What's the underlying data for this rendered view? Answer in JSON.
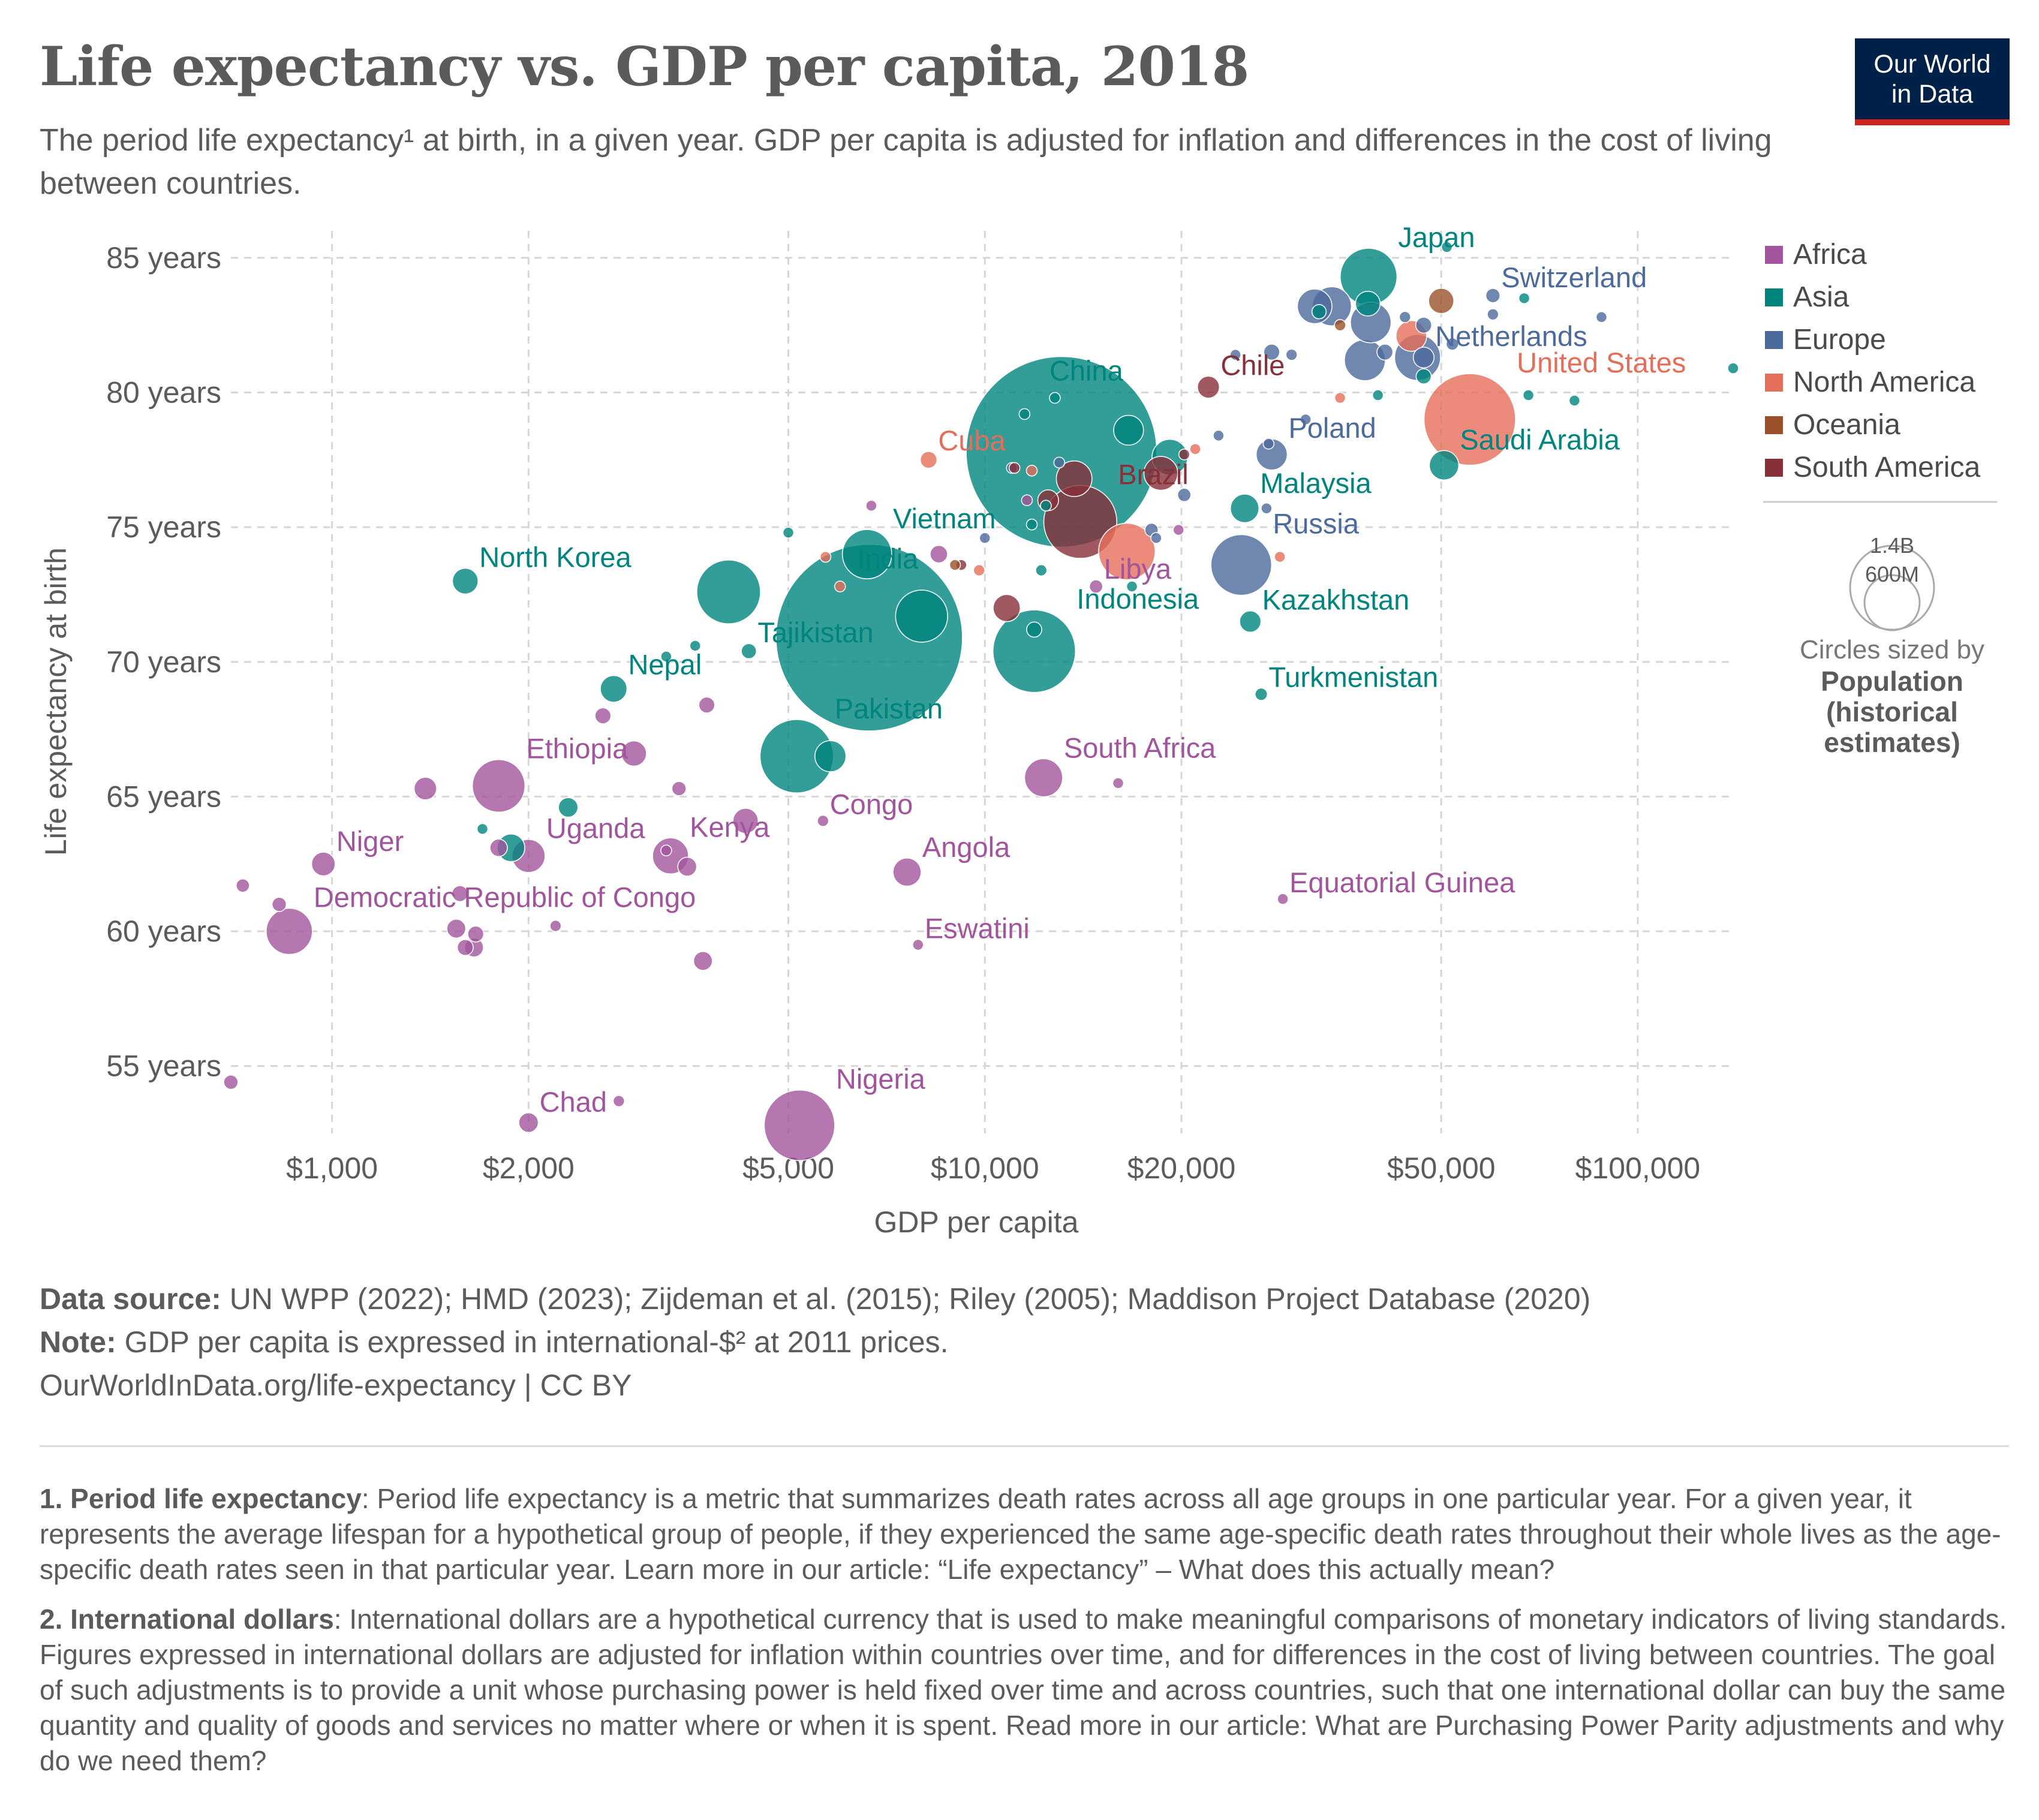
{
  "header": {
    "title": "Life expectancy vs. GDP per capita, 2018",
    "subtitle": "The period life expectancy¹ at birth, in a given year. GDP per capita is adjusted for inflation and differences in the cost of living between countries."
  },
  "logo": {
    "line1": "Our World",
    "line2": "in Data"
  },
  "chart_data": {
    "type": "scatter",
    "xlabel": "GDP per capita",
    "ylabel": "Life expectancy at birth",
    "x_scale": "log",
    "xlim": [
      700,
      140000
    ],
    "ylim": [
      52.5,
      86
    ],
    "x_ticks": [
      {
        "value": 1000,
        "label": "$1,000"
      },
      {
        "value": 2000,
        "label": "$2,000"
      },
      {
        "value": 5000,
        "label": "$5,000"
      },
      {
        "value": 10000,
        "label": "$10,000"
      },
      {
        "value": 20000,
        "label": "$20,000"
      },
      {
        "value": 50000,
        "label": "$50,000"
      },
      {
        "value": 100000,
        "label": "$100,000"
      }
    ],
    "y_ticks": [
      {
        "value": 55,
        "label": "55 years"
      },
      {
        "value": 60,
        "label": "60 years"
      },
      {
        "value": 65,
        "label": "65 years"
      },
      {
        "value": 70,
        "label": "70 years"
      },
      {
        "value": 75,
        "label": "75 years"
      },
      {
        "value": 80,
        "label": "80 years"
      },
      {
        "value": 85,
        "label": "85 years"
      }
    ],
    "grid": true,
    "legend_position": "right",
    "regions": [
      {
        "name": "Africa",
        "color": "#a2559c"
      },
      {
        "name": "Asia",
        "color": "#00847e"
      },
      {
        "name": "Europe",
        "color": "#4c6a9c"
      },
      {
        "name": "North America",
        "color": "#e56e5a"
      },
      {
        "name": "Oceania",
        "color": "#9a5129"
      },
      {
        "name": "South America",
        "color": "#883039"
      }
    ],
    "size_legend": {
      "large_label": "1.4B",
      "small_label": "600M",
      "caption": "Circles sized by",
      "variable_lines": [
        "Population",
        "(historical",
        "estimates)"
      ]
    },
    "labeled_points": [
      {
        "label": "China",
        "region": "Asia",
        "x": 13100,
        "y": 77.8,
        "pop": 1430
      },
      {
        "label": "India",
        "region": "Asia",
        "x": 6650,
        "y": 70.9,
        "pop": 1370
      },
      {
        "label": "United States",
        "region": "North America",
        "x": 55300,
        "y": 79.0,
        "pop": 330
      },
      {
        "label": "Indonesia",
        "region": "Asia",
        "x": 11900,
        "y": 70.4,
        "pop": 268
      },
      {
        "label": "Pakistan",
        "region": "Asia",
        "x": 5150,
        "y": 66.5,
        "pop": 212
      },
      {
        "label": "Brazil",
        "region": "South America",
        "x": 14000,
        "y": 75.2,
        "pop": 210
      },
      {
        "label": "Nigeria",
        "region": "Africa",
        "x": 5200,
        "y": 52.8,
        "pop": 196
      },
      {
        "label": "Russia",
        "region": "Europe",
        "x": 24700,
        "y": 73.6,
        "pop": 145
      },
      {
        "label": "Japan",
        "region": "Asia",
        "x": 38700,
        "y": 84.3,
        "pop": 127
      },
      {
        "label": "Ethiopia",
        "region": "Africa",
        "x": 1800,
        "y": 65.4,
        "pop": 109
      },
      {
        "label": "Vietnam",
        "region": "Asia",
        "x": 6600,
        "y": 74.0,
        "pop": 96
      },
      {
        "label": "Democratic Republic of Congo",
        "region": "Africa",
        "x": 860,
        "y": 60.0,
        "pop": 84
      },
      {
        "label": "Malaysia",
        "region": "Asia",
        "x": 25000,
        "y": 75.7,
        "pop": 32
      },
      {
        "label": "Kenya",
        "region": "Africa",
        "x": 3300,
        "y": 62.8,
        "pop": 51
      },
      {
        "label": "Uganda",
        "region": "Africa",
        "x": 2000,
        "y": 62.8,
        "pop": 43
      },
      {
        "label": "South Africa",
        "region": "Africa",
        "x": 12300,
        "y": 65.7,
        "pop": 57
      },
      {
        "label": "Nepal",
        "region": "Asia",
        "x": 2700,
        "y": 69.0,
        "pop": 28
      },
      {
        "label": "North Korea",
        "region": "Asia",
        "x": 1600,
        "y": 73.0,
        "pop": 26
      },
      {
        "label": "Saudi Arabia",
        "region": "Asia",
        "x": 50500,
        "y": 77.3,
        "pop": 34
      },
      {
        "label": "Netherlands",
        "region": "Europe",
        "x": 47000,
        "y": 81.3,
        "pop": 17
      },
      {
        "label": "Switzerland",
        "region": "Europe",
        "x": 60000,
        "y": 83.6,
        "pop": 8
      },
      {
        "label": "Poland",
        "region": "Europe",
        "x": 27500,
        "y": 77.7,
        "pop": 38
      },
      {
        "label": "Chile",
        "region": "South America",
        "x": 22000,
        "y": 80.2,
        "pop": 19
      },
      {
        "label": "Cuba",
        "region": "North America",
        "x": 8200,
        "y": 77.5,
        "pop": 11
      },
      {
        "label": "Libya",
        "region": "Africa",
        "x": 14800,
        "y": 72.8,
        "pop": 7
      },
      {
        "label": "Tajikistan",
        "region": "Asia",
        "x": 4350,
        "y": 70.4,
        "pop": 9
      },
      {
        "label": "Kazakhstan",
        "region": "Asia",
        "x": 25500,
        "y": 71.5,
        "pop": 18
      },
      {
        "label": "Turkmenistan",
        "region": "Asia",
        "x": 26500,
        "y": 68.8,
        "pop": 6
      },
      {
        "label": "Congo",
        "region": "Africa",
        "x": 5650,
        "y": 64.1,
        "pop": 5
      },
      {
        "label": "Angola",
        "region": "Africa",
        "x": 7600,
        "y": 62.2,
        "pop": 31
      },
      {
        "label": "Eswatini",
        "region": "Africa",
        "x": 7900,
        "y": 59.5,
        "pop": 1
      },
      {
        "label": "Equatorial Guinea",
        "region": "Africa",
        "x": 28600,
        "y": 61.2,
        "pop": 1
      },
      {
        "label": "Niger",
        "region": "Africa",
        "x": 970,
        "y": 62.5,
        "pop": 22
      },
      {
        "label": "Chad",
        "region": "Africa",
        "x": 2000,
        "y": 52.9,
        "pop": 15
      }
    ],
    "unlabeled_points": [
      {
        "region": "Africa",
        "x": 700,
        "y": 54.4,
        "pop": 8
      },
      {
        "region": "Africa",
        "x": 730,
        "y": 61.7,
        "pop": 7
      },
      {
        "region": "Africa",
        "x": 830,
        "y": 61.0,
        "pop": 8
      },
      {
        "region": "Africa",
        "x": 1390,
        "y": 65.3,
        "pop": 20
      },
      {
        "region": "Africa",
        "x": 1550,
        "y": 60.1,
        "pop": 14
      },
      {
        "region": "Africa",
        "x": 1570,
        "y": 61.4,
        "pop": 10
      },
      {
        "region": "Africa",
        "x": 1600,
        "y": 59.4,
        "pop": 10
      },
      {
        "region": "Africa",
        "x": 1650,
        "y": 59.4,
        "pop": 14
      },
      {
        "region": "Africa",
        "x": 1660,
        "y": 59.9,
        "pop": 10
      },
      {
        "region": "Africa",
        "x": 1800,
        "y": 63.1,
        "pop": 12
      },
      {
        "region": "Africa",
        "x": 2200,
        "y": 60.2,
        "pop": 5
      },
      {
        "region": "Africa",
        "x": 2600,
        "y": 68.0,
        "pop": 10
      },
      {
        "region": "Africa",
        "x": 2750,
        "y": 53.7,
        "pop": 5
      },
      {
        "region": "Africa",
        "x": 2900,
        "y": 66.6,
        "pop": 25
      },
      {
        "region": "Africa",
        "x": 3250,
        "y": 63.0,
        "pop": 4
      },
      {
        "region": "Africa",
        "x": 3400,
        "y": 65.3,
        "pop": 8
      },
      {
        "region": "Africa",
        "x": 3500,
        "y": 62.4,
        "pop": 14
      },
      {
        "region": "Africa",
        "x": 3700,
        "y": 58.9,
        "pop": 14
      },
      {
        "region": "Africa",
        "x": 3750,
        "y": 68.4,
        "pop": 10
      },
      {
        "region": "Africa",
        "x": 4300,
        "y": 64.1,
        "pop": 25
      },
      {
        "region": "Africa",
        "x": 6700,
        "y": 75.8,
        "pop": 4
      },
      {
        "region": "Africa",
        "x": 8500,
        "y": 74.0,
        "pop": 12
      },
      {
        "region": "Africa",
        "x": 11600,
        "y": 76.0,
        "pop": 1
      },
      {
        "region": "Africa",
        "x": 16000,
        "y": 65.5,
        "pop": 2
      },
      {
        "region": "Africa",
        "x": 19800,
        "y": 74.9,
        "pop": 1
      },
      {
        "region": "Asia",
        "x": 1700,
        "y": 63.8,
        "pop": 2
      },
      {
        "region": "Asia",
        "x": 1880,
        "y": 63.1,
        "pop": 30
      },
      {
        "region": "Asia",
        "x": 2300,
        "y": 64.6,
        "pop": 15
      },
      {
        "region": "Asia",
        "x": 3250,
        "y": 70.2,
        "pop": 3
      },
      {
        "region": "Asia",
        "x": 3600,
        "y": 70.6,
        "pop": 3
      },
      {
        "region": "Asia",
        "x": 4050,
        "y": 72.6,
        "pop": 160
      },
      {
        "region": "Asia",
        "x": 5000,
        "y": 74.8,
        "pop": 3
      },
      {
        "region": "Asia",
        "x": 5800,
        "y": 66.5,
        "pop": 38
      },
      {
        "region": "Asia",
        "x": 8000,
        "y": 71.7,
        "pop": 107
      },
      {
        "region": "Asia",
        "x": 11500,
        "y": 79.2,
        "pop": 2
      },
      {
        "region": "Asia",
        "x": 11800,
        "y": 75.1,
        "pop": 4
      },
      {
        "region": "Asia",
        "x": 11900,
        "y": 71.2,
        "pop": 9
      },
      {
        "region": "Asia",
        "x": 12200,
        "y": 73.4,
        "pop": 5
      },
      {
        "region": "Asia",
        "x": 12400,
        "y": 75.8,
        "pop": 4
      },
      {
        "region": "Asia",
        "x": 12800,
        "y": 79.8,
        "pop": 3
      },
      {
        "region": "Asia",
        "x": 16600,
        "y": 78.6,
        "pop": 35
      },
      {
        "region": "Asia",
        "x": 16800,
        "y": 72.8,
        "pop": 2
      },
      {
        "region": "Asia",
        "x": 19200,
        "y": 77.6,
        "pop": 50
      },
      {
        "region": "Asia",
        "x": 32500,
        "y": 83.0,
        "pop": 8
      },
      {
        "region": "Asia",
        "x": 38600,
        "y": 83.3,
        "pop": 24
      },
      {
        "region": "Asia",
        "x": 40000,
        "y": 79.9,
        "pop": 4
      },
      {
        "region": "Asia",
        "x": 47000,
        "y": 80.6,
        "pop": 9
      },
      {
        "region": "Asia",
        "x": 51000,
        "y": 85.4,
        "pop": 1
      },
      {
        "region": "Asia",
        "x": 67000,
        "y": 83.5,
        "pop": 1
      },
      {
        "region": "Asia",
        "x": 68000,
        "y": 79.9,
        "pop": 1
      },
      {
        "region": "Asia",
        "x": 80000,
        "y": 79.7,
        "pop": 1
      },
      {
        "region": "Asia",
        "x": 140000,
        "y": 80.9,
        "pop": 1
      },
      {
        "region": "Europe",
        "x": 10000,
        "y": 74.6,
        "pop": 1
      },
      {
        "region": "Europe",
        "x": 11000,
        "y": 77.2,
        "pop": 3
      },
      {
        "region": "Europe",
        "x": 13000,
        "y": 77.4,
        "pop": 2
      },
      {
        "region": "Europe",
        "x": 18000,
        "y": 74.9,
        "pop": 7
      },
      {
        "region": "Europe",
        "x": 18300,
        "y": 74.6,
        "pop": 4
      },
      {
        "region": "Europe",
        "x": 20200,
        "y": 76.2,
        "pop": 7
      },
      {
        "region": "Europe",
        "x": 22800,
        "y": 78.4,
        "pop": 4
      },
      {
        "region": "Europe",
        "x": 24200,
        "y": 81.4,
        "pop": 1
      },
      {
        "region": "Europe",
        "x": 27000,
        "y": 75.7,
        "pop": 3
      },
      {
        "region": "Europe",
        "x": 27200,
        "y": 78.1,
        "pop": 2
      },
      {
        "region": "Europe",
        "x": 27500,
        "y": 81.5,
        "pop": 10
      },
      {
        "region": "Europe",
        "x": 29500,
        "y": 81.4,
        "pop": 5
      },
      {
        "region": "Europe",
        "x": 31000,
        "y": 79.0,
        "pop": 3
      },
      {
        "region": "Europe",
        "x": 32000,
        "y": 83.2,
        "pop": 47
      },
      {
        "region": "Europe",
        "x": 34000,
        "y": 83.2,
        "pop": 60
      },
      {
        "region": "Europe",
        "x": 38200,
        "y": 81.2,
        "pop": 66
      },
      {
        "region": "Europe",
        "x": 39000,
        "y": 82.6,
        "pop": 65
      },
      {
        "region": "Europe",
        "x": 41000,
        "y": 81.5,
        "pop": 10
      },
      {
        "region": "Europe",
        "x": 44000,
        "y": 82.8,
        "pop": 5
      },
      {
        "region": "Europe",
        "x": 46000,
        "y": 81.3,
        "pop": 83
      },
      {
        "region": "Europe",
        "x": 47000,
        "y": 82.5,
        "pop": 10
      },
      {
        "region": "Europe",
        "x": 52000,
        "y": 81.8,
        "pop": 6
      },
      {
        "region": "Europe",
        "x": 60000,
        "y": 82.9,
        "pop": 5
      },
      {
        "region": "Europe",
        "x": 88000,
        "y": 82.8,
        "pop": 1
      },
      {
        "region": "North America",
        "x": 5700,
        "y": 73.9,
        "pop": 4
      },
      {
        "region": "North America",
        "x": 6000,
        "y": 72.8,
        "pop": 4
      },
      {
        "region": "North America",
        "x": 9800,
        "y": 73.4,
        "pop": 5
      },
      {
        "region": "North America",
        "x": 11800,
        "y": 77.1,
        "pop": 3
      },
      {
        "region": "North America",
        "x": 16500,
        "y": 74.1,
        "pop": 126
      },
      {
        "region": "North America",
        "x": 21000,
        "y": 77.9,
        "pop": 4
      },
      {
        "region": "North America",
        "x": 28300,
        "y": 73.9,
        "pop": 4
      },
      {
        "region": "North America",
        "x": 35000,
        "y": 79.8,
        "pop": 3
      },
      {
        "region": "North America",
        "x": 45000,
        "y": 82.1,
        "pop": 37
      },
      {
        "region": "Oceania",
        "x": 9000,
        "y": 73.6,
        "pop": 1
      },
      {
        "region": "Oceania",
        "x": 35000,
        "y": 82.5,
        "pop": 5
      },
      {
        "region": "Oceania",
        "x": 50000,
        "y": 83.4,
        "pop": 25
      },
      {
        "region": "South America",
        "x": 9200,
        "y": 73.6,
        "pop": 3
      },
      {
        "region": "South America",
        "x": 10800,
        "y": 72.0,
        "pop": 29
      },
      {
        "region": "South America",
        "x": 11100,
        "y": 77.2,
        "pop": 3
      },
      {
        "region": "South America",
        "x": 12500,
        "y": 76.0,
        "pop": 17
      },
      {
        "region": "South America",
        "x": 13700,
        "y": 76.8,
        "pop": 50
      },
      {
        "region": "South America",
        "x": 18600,
        "y": 77.0,
        "pop": 45
      },
      {
        "region": "South America",
        "x": 20200,
        "y": 77.7,
        "pop": 3
      }
    ]
  },
  "footer": {
    "source_label": "Data source:",
    "source_text": "UN WPP (2022); HMD (2023); Zijdeman et al. (2015); Riley (2005); Maddison Project Database (2020)",
    "note_label": "Note:",
    "note_text": "GDP per capita is expressed in international-$² at 2011 prices.",
    "url_text": "OurWorldInData.org/life-expectancy | CC BY"
  },
  "notes": {
    "n1_label": "1. Period life expectancy",
    "n1_text": ": Period life expectancy is a metric that summarizes death rates across all age groups in one particular year. For a given year, it represents the average lifespan for a hypothetical group of people, if they experienced the same age-specific death rates throughout their whole lives as the age-specific death rates seen in that particular year. Learn more in our article: “Life expectancy” – What does this actually mean?",
    "n2_label": "2. International dollars",
    "n2_text": ": International dollars are a hypothetical currency that is used to make meaningful comparisons of monetary indicators of living standards. Figures expressed in international dollars are adjusted for inflation within countries over time, and for differences in the cost of living between countries. The goal of such adjustments is to provide a unit whose purchasing power is held fixed over time and across countries, such that one international dollar can buy the same quantity and quality of goods and services no matter where or when it is spent. Read more in our article: What are Purchasing Power Parity adjustments and why do we need them?"
  }
}
